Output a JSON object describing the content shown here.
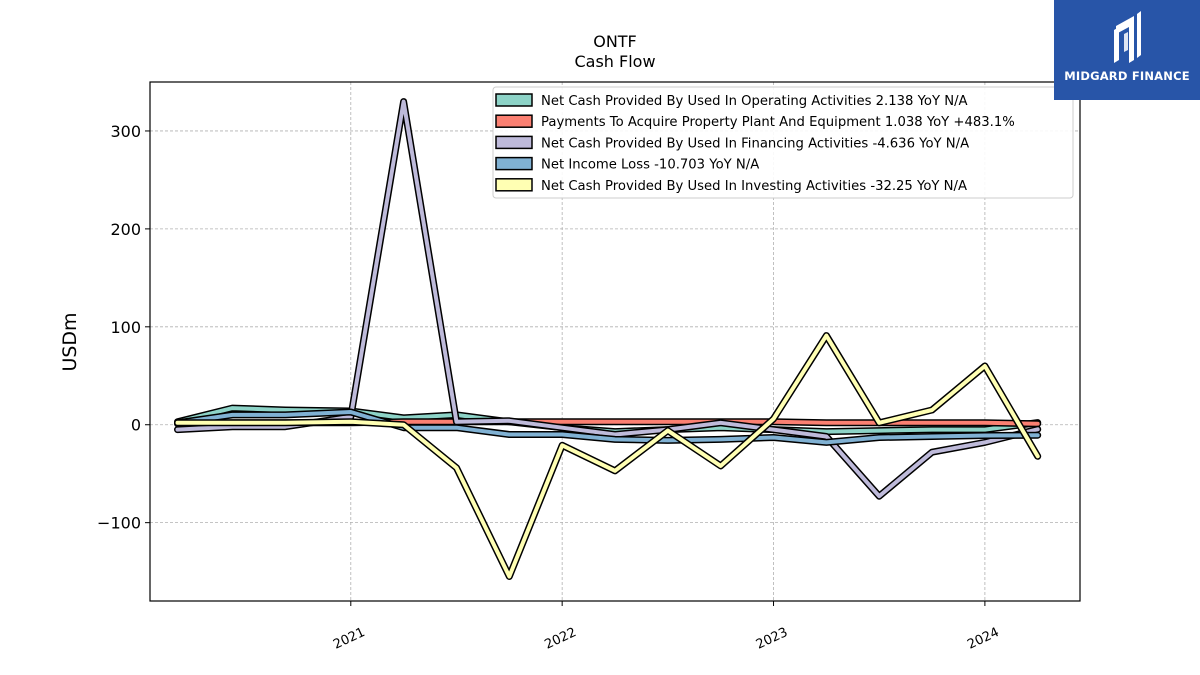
{
  "chart_data": {
    "type": "line",
    "title": "ONTF",
    "subtitle": "Cash Flow",
    "ylabel": "USDm",
    "xlabel": "",
    "ylim": [
      -180,
      350
    ],
    "xlim": [
      2020.05,
      2024.45
    ],
    "yticks": [
      -100,
      0,
      100,
      200,
      300
    ],
    "ytick_labels": [
      "−100",
      "0",
      "100",
      "200",
      "300"
    ],
    "xticks": [
      2021,
      2022,
      2023,
      2024
    ],
    "xtick_labels": [
      "2021",
      "2022",
      "2023",
      "2024"
    ],
    "grid": true,
    "legend_position": "top-right",
    "x": [
      2020.18,
      2020.44,
      2020.69,
      2021.0,
      2021.25,
      2021.5,
      2021.75,
      2022.0,
      2022.25,
      2022.5,
      2022.75,
      2023.0,
      2023.25,
      2023.5,
      2023.75,
      2024.0,
      2024.25
    ],
    "series": [
      {
        "name": "Net Cash Provided By Used In Operating Activities",
        "legend_value": "2.138 YoY N/A",
        "color": "#8dd3c7",
        "values": [
          3,
          17,
          15,
          14,
          7,
          10,
          3,
          -3,
          -7,
          -5,
          -3,
          -5,
          -7,
          -6,
          -5,
          -5,
          2.138
        ]
      },
      {
        "name": "Payments To Acquire Property Plant And Equipment",
        "legend_value": "1.038 YoY +483.1%",
        "color": "#fb8072",
        "values": [
          1,
          2,
          2,
          2,
          3,
          3,
          3,
          3,
          3,
          3,
          3,
          3,
          2,
          2,
          2,
          2,
          1.038
        ]
      },
      {
        "name": "Net Cash Provided By Used In Financing Activities",
        "legend_value": "-4.636 YoY N/A",
        "color": "#bebada",
        "values": [
          -5,
          -2,
          -2,
          8,
          330,
          3,
          4,
          -3,
          -10,
          -5,
          2,
          -5,
          -12,
          -73,
          -28,
          -18,
          -4.636
        ]
      },
      {
        "name": "Net Income Loss",
        "legend_value": "-10.703 YoY N/A",
        "color": "#80b1d3",
        "values": [
          2,
          10,
          10,
          13,
          -3,
          -3,
          -10,
          -10,
          -15,
          -16,
          -15,
          -13,
          -18,
          -13,
          -12,
          -11,
          -10.703
        ]
      },
      {
        "name": "Net Cash Provided By Used In Investing Activities",
        "legend_value": "-32.25 YoY N/A",
        "color": "#ffffb3",
        "values": [
          2,
          2,
          2,
          3,
          0,
          -44,
          -155,
          -21,
          -47,
          -6,
          -42,
          6,
          91,
          2,
          15,
          60,
          -32.25
        ]
      }
    ]
  },
  "logo": {
    "text": "MIDGARD FINANCE",
    "color": "#2855a8"
  }
}
